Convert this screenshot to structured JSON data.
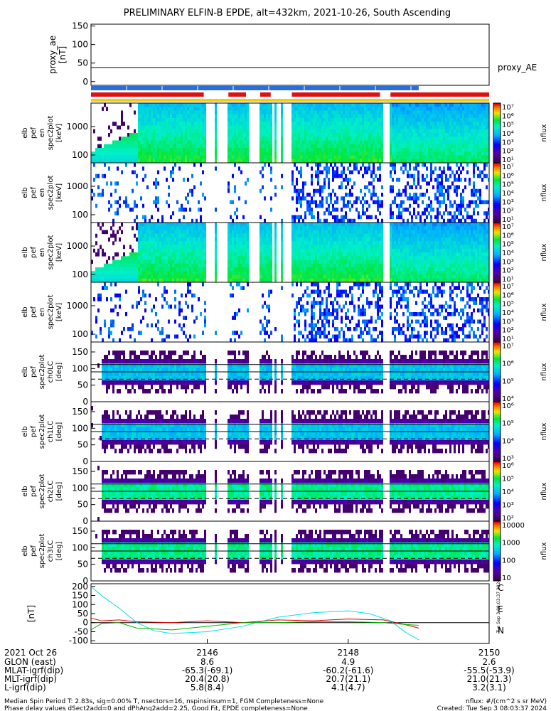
{
  "chart_data": {
    "type": "heatmap",
    "title": "PRELIMINARY ELFIN-B EPDE, alt=432km, 2021-10-26, South Ascending",
    "time_axis": {
      "tick_labels": [
        "2146",
        "2148",
        "2150"
      ],
      "tick_values_min": [
        6,
        8,
        10
      ],
      "range_min": [
        4.35,
        10.0
      ]
    },
    "panels": [
      {
        "kind": "line",
        "ylabel": [
          "proxy_ae",
          "[nT]"
        ],
        "yticks": [
          "150",
          "100",
          "50",
          "0"
        ],
        "yrange": [
          -10,
          155
        ],
        "series": [
          {
            "name": "proxy_AE",
            "color": "#000000",
            "x": [
              4.35,
              10.0
            ],
            "y": [
              38,
              38
            ]
          }
        ],
        "bars": {
          "blue": [
            [
              4.35,
              9.0
            ]
          ],
          "red": [
            [
              4.35,
              5.95
            ],
            [
              6.3,
              6.55
            ],
            [
              6.75,
              6.9
            ],
            [
              7.2,
              8.45
            ],
            [
              8.6,
              10.0
            ]
          ],
          "yellow": [
            [
              4.35,
              10.0
            ]
          ]
        }
      },
      {
        "kind": "spectrogram",
        "ylabel": [
          "elb",
          "pef",
          "en",
          "spec2plot",
          "[keV]"
        ],
        "yticks": [
          "1000",
          "100"
        ],
        "colorbar": {
          "title": "nflux",
          "ticks": [
            "10⁷",
            "10⁶",
            "10⁵",
            "10⁴",
            "10³",
            "10²",
            "10¹"
          ]
        }
      },
      {
        "kind": "spectrogram",
        "ylabel": [
          "elb",
          "pef",
          "en",
          "spec2plot",
          "[keV]"
        ],
        "yticks": [
          "1000",
          "100"
        ],
        "colorbar": {
          "title": "nflux",
          "ticks": [
            "10⁷",
            "10⁶",
            "10⁵",
            "10⁴",
            "10³",
            "10²",
            "10¹"
          ]
        }
      },
      {
        "kind": "spectrogram",
        "ylabel": [
          "elb",
          "pef",
          "en",
          "spec2plot",
          "[keV]"
        ],
        "yticks": [
          "1000",
          "100"
        ],
        "colorbar": {
          "title": "nflux",
          "ticks": [
            "10⁷",
            "10⁶",
            "10⁵",
            "10⁴",
            "10³",
            "10²",
            "10¹"
          ]
        }
      },
      {
        "kind": "spectrogram",
        "ylabel": [
          "elb",
          "pef",
          "en",
          "spec2plot",
          "[keV]"
        ],
        "yticks": [
          "1000",
          "100"
        ],
        "colorbar": {
          "title": "nflux",
          "ticks": [
            "10⁷",
            "10⁶",
            "10⁵",
            "10⁴",
            "10³",
            "10²",
            "10¹"
          ]
        }
      },
      {
        "kind": "pitch",
        "ylabel": [
          "elb",
          "pef",
          "spec2plot",
          "ch0LC",
          "[deg]"
        ],
        "yticks": [
          "150",
          "100",
          "50",
          "0"
        ],
        "colorbar": {
          "title": "nflux",
          "ticks": [
            "10⁷",
            "10⁶",
            "10⁵",
            "10⁴"
          ]
        }
      },
      {
        "kind": "pitch",
        "ylabel": [
          "elb",
          "pef",
          "spec2plot",
          "ch1LC",
          "[deg]"
        ],
        "yticks": [
          "150",
          "100",
          "50",
          "0"
        ],
        "colorbar": {
          "title": "nflux",
          "ticks": [
            "10⁶",
            "10⁵",
            "10⁴",
            "10³"
          ]
        }
      },
      {
        "kind": "pitch",
        "ylabel": [
          "elb",
          "pef",
          "spec2plot",
          "ch2LC",
          "[deg]"
        ],
        "yticks": [
          "150",
          "100",
          "50",
          "0"
        ],
        "colorbar": {
          "title": "nflux",
          "ticks": [
            "10⁶",
            "10⁵",
            "10⁴",
            "10³",
            "10²"
          ]
        }
      },
      {
        "kind": "pitch",
        "ylabel": [
          "elb",
          "pef",
          "spec2plot",
          "ch3LC",
          "[deg]"
        ],
        "yticks": [
          "150",
          "100",
          "50",
          "0"
        ],
        "colorbar": {
          "title": "nflux",
          "ticks": [
            "10000",
            "1000",
            "100",
            "10"
          ]
        }
      },
      {
        "kind": "line",
        "ylabel": [
          "[nT]"
        ],
        "yticks": [
          "200",
          "150",
          "100",
          "50",
          "0",
          "-50",
          "-100"
        ],
        "yrange": [
          -115,
          215
        ],
        "legend": [
          "C",
          "E",
          "N"
        ],
        "series": [
          {
            "name": "C",
            "color": "#00e0f0",
            "x": [
              4.35,
              4.5,
              4.75,
              5.0,
              5.25,
              5.5,
              6.0,
              6.5,
              7.0,
              7.5,
              8.0,
              8.3,
              8.6,
              8.8,
              9.0
            ],
            "y": [
              200,
              150,
              80,
              0,
              -45,
              -60,
              -50,
              -20,
              30,
              55,
              65,
              50,
              10,
              -50,
              -95
            ]
          },
          {
            "name": "E",
            "color": "#e00000",
            "x": [
              4.35,
              4.5,
              4.75,
              5.0,
              5.5,
              6.0,
              6.5,
              7.0,
              7.5,
              8.0,
              8.5,
              8.8,
              9.0
            ],
            "y": [
              25,
              10,
              15,
              5,
              0,
              10,
              0,
              15,
              10,
              20,
              15,
              -10,
              -30
            ]
          },
          {
            "name": "N",
            "color": "#00b000",
            "x": [
              4.35,
              4.5,
              4.75,
              5.0,
              5.5,
              6.0,
              6.5,
              7.0,
              7.5,
              8.0,
              8.5,
              8.8,
              9.0
            ],
            "y": [
              -40,
              -5,
              0,
              -30,
              -40,
              -20,
              0,
              0,
              5,
              5,
              0,
              -10,
              -15
            ]
          }
        ]
      }
    ]
  },
  "footer": {
    "date": "2021 Oct 26",
    "rows": [
      {
        "label": "GLON (east)",
        "values": [
          "8.6",
          "4.9",
          "2.6"
        ]
      },
      {
        "label": "MLAT-igrf(dip)",
        "values": [
          "-65.3(-69.1)",
          "-60.2(-61.6)",
          "-55.5(-53.9)"
        ]
      },
      {
        "label": "MLT-igrf(dip)",
        "values": [
          "20.4(20.8)",
          "20.7(21.1)",
          "21.0(21.3)"
        ]
      },
      {
        "label": "L-igrf(dip)",
        "values": [
          "5.8(8.4)",
          "4.1(4.7)",
          "3.2(3.1)"
        ]
      }
    ],
    "note1": "Median Spin Period T: 2.83s, sig=0.00% T, nsectors=16, nspinsinsum=1, FGM Completeness=None",
    "note2": "Phase delay values dSect2add=0 and dPhAng2add=2.25, Good Fit, EPDE completeness=None",
    "units": "nflux: #/(cm^2 s sr MeV)",
    "created": "Created: Tue Sep  3 08:03:37 2024",
    "side_stamp": "Tue Sep  3 08:03:37 2024"
  }
}
